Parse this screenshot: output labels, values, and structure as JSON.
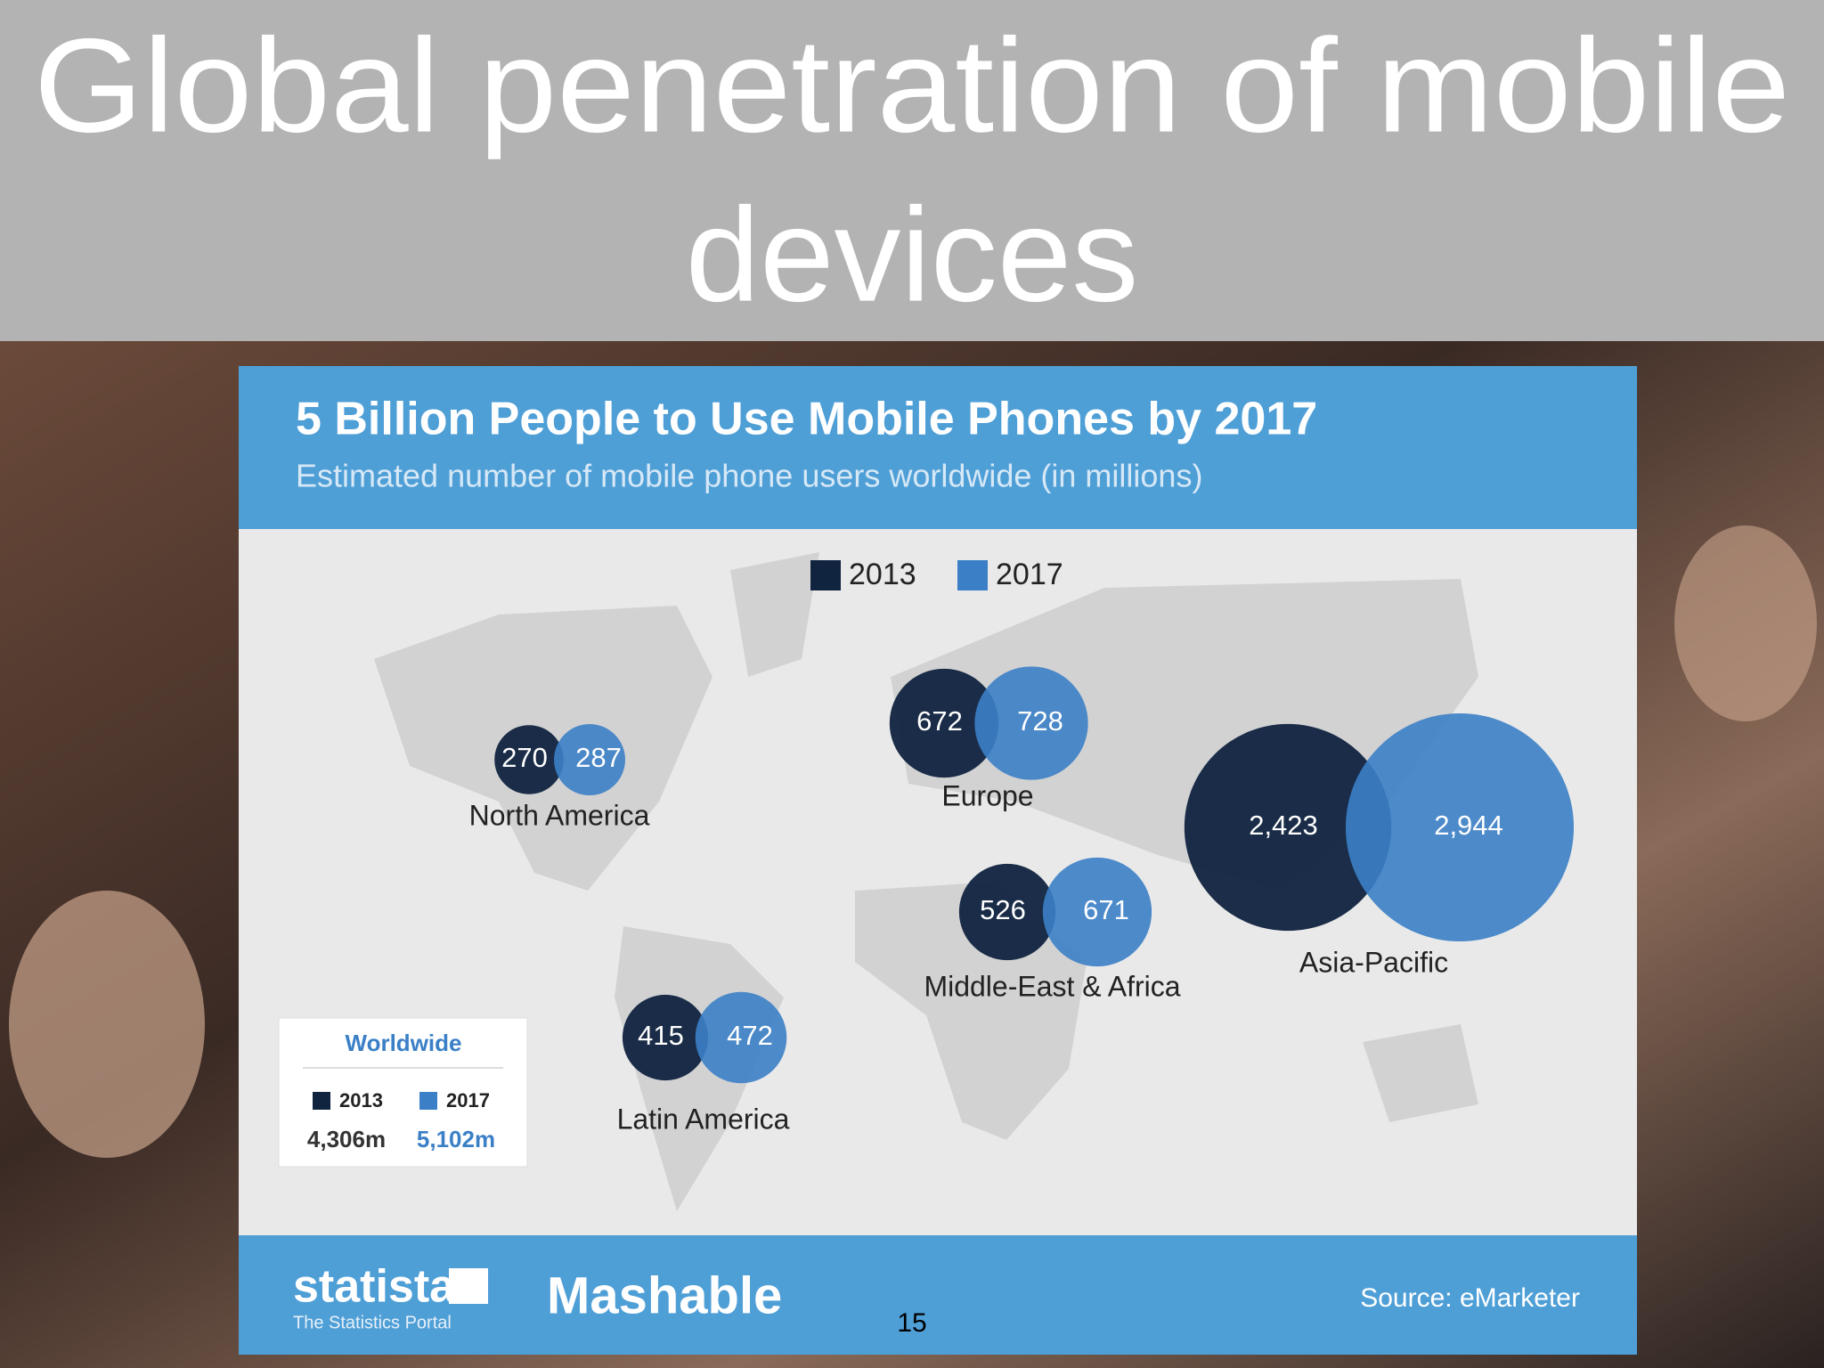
{
  "slide_title": [
    "Global penetration of mobile",
    "devices"
  ],
  "page_number": "15",
  "chart_data": {
    "type": "bubble",
    "title": "5 Billion People to Use Mobile Phones by 2017",
    "subtitle": "Estimated number of mobile phone users worldwide (in millions)",
    "categories": [
      "North America",
      "Europe",
      "Middle-East & Africa",
      "Latin America",
      "Asia-Pacific"
    ],
    "series": [
      {
        "name": "2013",
        "color": "#10233f",
        "values": [
          270,
          672,
          526,
          415,
          2423
        ],
        "value_labels": [
          "270",
          "672",
          "526",
          "415",
          "2,423"
        ]
      },
      {
        "name": "2017",
        "color": "#3b80c6",
        "values": [
          287,
          728,
          671,
          472,
          2944
        ],
        "value_labels": [
          "287",
          "728",
          "671",
          "472",
          "2,944"
        ]
      }
    ],
    "worldwide": {
      "title": "Worldwide",
      "values": [
        4306,
        5102
      ],
      "value_labels": [
        "4,306m",
        "5,102m"
      ]
    }
  },
  "footer": {
    "brand": "statista",
    "brand_tagline": "The Statistics Portal",
    "partner": "Mashable",
    "source": "Source: eMarketer"
  }
}
